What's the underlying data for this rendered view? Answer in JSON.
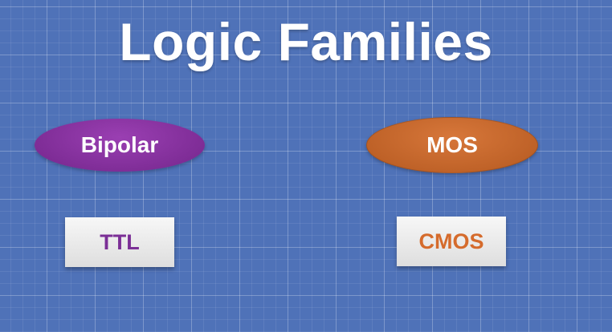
{
  "title": "Logic Families",
  "families": [
    {
      "name": "Bipolar",
      "subfamily": "TTL"
    },
    {
      "name": "MOS",
      "subfamily": "CMOS"
    }
  ],
  "colors": {
    "background": "#4f72b8",
    "bipolar": "#7f2d97",
    "mos": "#bf6228",
    "ttl_text": "#7b2f96",
    "cmos_text": "#d56b2c"
  }
}
